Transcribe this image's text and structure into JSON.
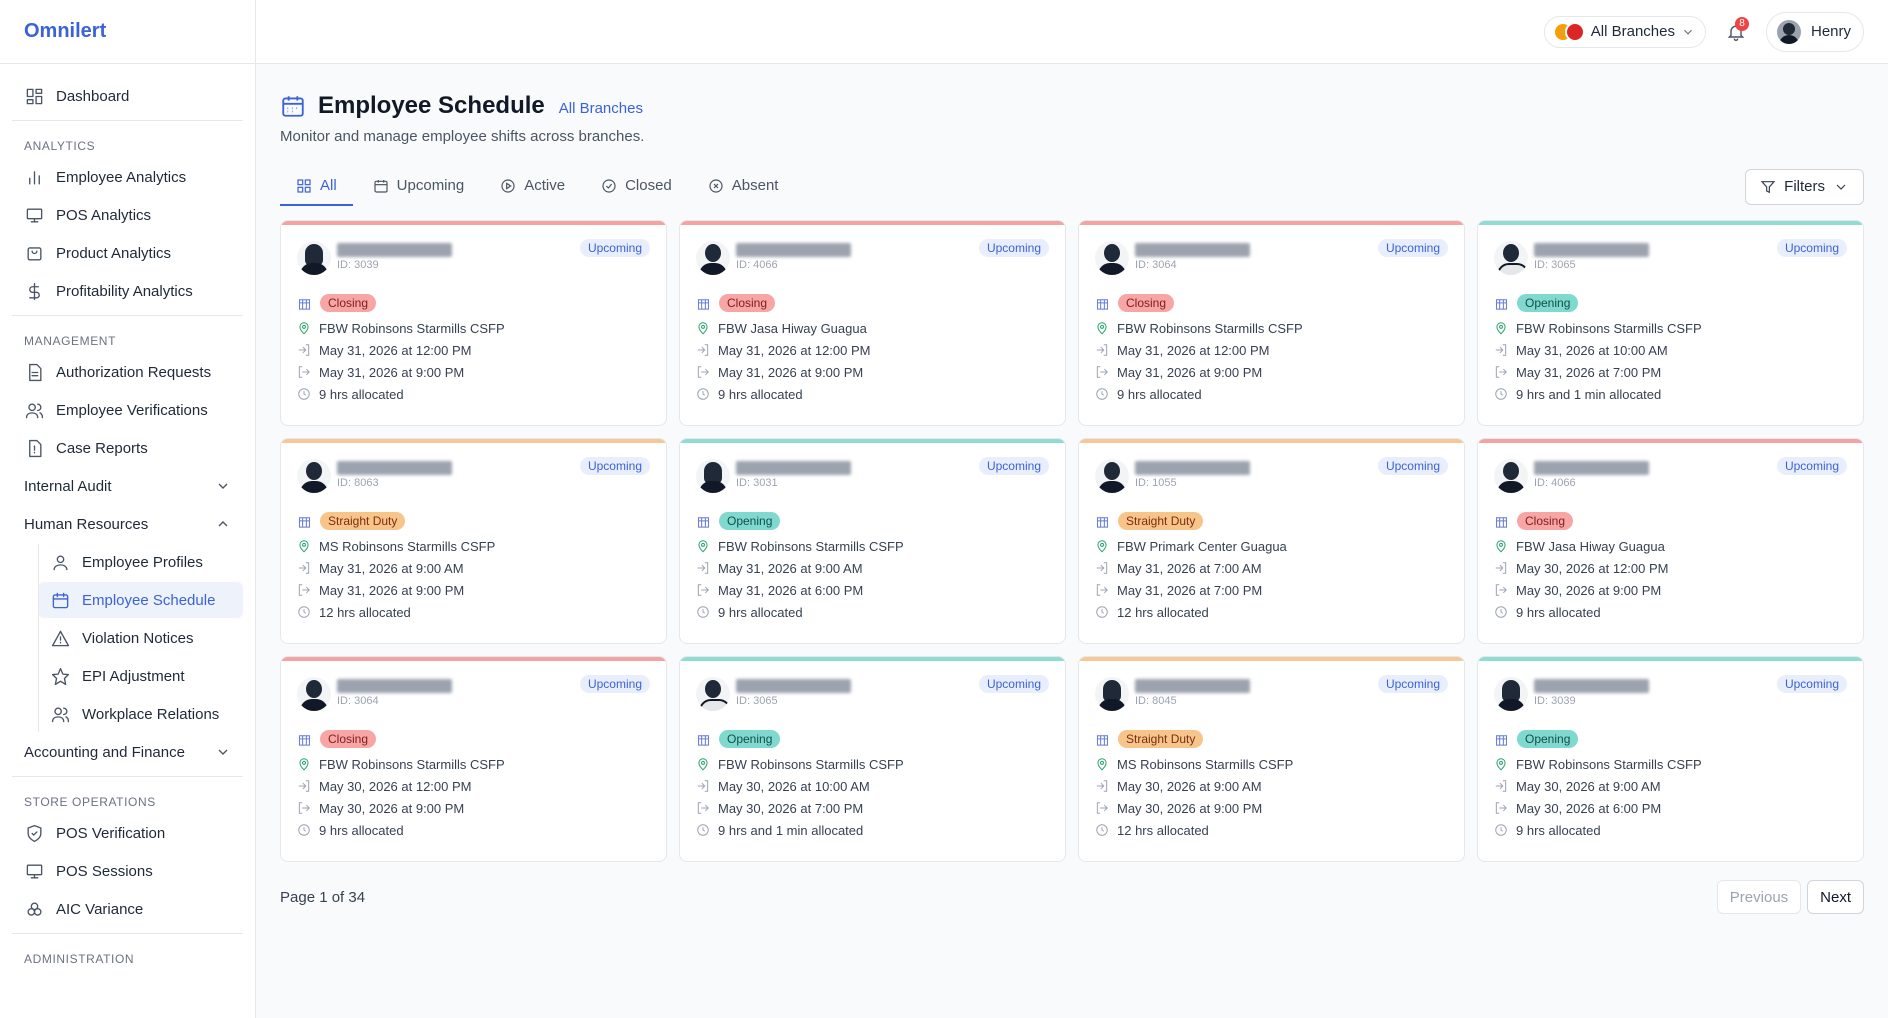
{
  "app": {
    "name": "Omnilert"
  },
  "sidebar": {
    "dashboard": "Dashboard",
    "analytics_label": "ANALYTICS",
    "analytics": [
      "Employee Analytics",
      "POS Analytics",
      "Product Analytics",
      "Profitability Analytics"
    ],
    "management_label": "MANAGEMENT",
    "management": [
      "Authorization Requests",
      "Employee Verifications",
      "Case Reports"
    ],
    "internal_audit": "Internal Audit",
    "human_resources": "Human Resources",
    "hr_items": [
      "Employee Profiles",
      "Employee Schedule",
      "Violation Notices",
      "EPI Adjustment",
      "Workplace Relations"
    ],
    "accounting": "Accounting and Finance",
    "store_ops_label": "STORE OPERATIONS",
    "store_ops": [
      "POS Verification",
      "POS Sessions",
      "AIC Variance"
    ],
    "admin_label": "ADMINISTRATION"
  },
  "topbar": {
    "branch": "All Branches",
    "notifications": "8",
    "user": "Henry"
  },
  "page": {
    "title": "Employee Schedule",
    "branch": "All Branches",
    "subtitle": "Monitor and manage employee shifts across branches.",
    "tabs": [
      "All",
      "Upcoming",
      "Active",
      "Closed",
      "Absent"
    ],
    "filters": "Filters"
  },
  "cards": [
    {
      "id": "ID: 3039",
      "status": "Upcoming",
      "shift": "Closing",
      "branch": "FBW Robinsons Starmills CSFP",
      "start": "May 31, 2026 at 12:00 PM",
      "end": "May 31, 2026 at 9:00 PM",
      "hours": "9 hrs allocated",
      "color": "#f4a3a3"
    },
    {
      "id": "ID: 4066",
      "status": "Upcoming",
      "shift": "Closing",
      "branch": "FBW Jasa Hiway Guagua",
      "start": "May 31, 2026 at 12:00 PM",
      "end": "May 31, 2026 at 9:00 PM",
      "hours": "9 hrs allocated",
      "color": "#f4a3a3"
    },
    {
      "id": "ID: 3064",
      "status": "Upcoming",
      "shift": "Closing",
      "branch": "FBW Robinsons Starmills CSFP",
      "start": "May 31, 2026 at 12:00 PM",
      "end": "May 31, 2026 at 9:00 PM",
      "hours": "9 hrs allocated",
      "color": "#f4a3a3"
    },
    {
      "id": "ID: 3065",
      "status": "Upcoming",
      "shift": "Opening",
      "branch": "FBW Robinsons Starmills CSFP",
      "start": "May 31, 2026 at 10:00 AM",
      "end": "May 31, 2026 at 7:00 PM",
      "hours": "9 hrs and 1 min allocated",
      "color": "#8fdcd3"
    },
    {
      "id": "ID: 8063",
      "status": "Upcoming",
      "shift": "Straight Duty",
      "branch": "MS Robinsons Starmills CSFP",
      "start": "May 31, 2026 at 9:00 AM",
      "end": "May 31, 2026 at 9:00 PM",
      "hours": "12 hrs allocated",
      "color": "#f7c896"
    },
    {
      "id": "ID: 3031",
      "status": "Upcoming",
      "shift": "Opening",
      "branch": "FBW Robinsons Starmills CSFP",
      "start": "May 31, 2026 at 9:00 AM",
      "end": "May 31, 2026 at 6:00 PM",
      "hours": "9 hrs allocated",
      "color": "#8fdcd3"
    },
    {
      "id": "ID: 1055",
      "status": "Upcoming",
      "shift": "Straight Duty",
      "branch": "FBW Primark Center Guagua",
      "start": "May 31, 2026 at 7:00 AM",
      "end": "May 31, 2026 at 7:00 PM",
      "hours": "12 hrs allocated",
      "color": "#f7c896"
    },
    {
      "id": "ID: 4066",
      "status": "Upcoming",
      "shift": "Closing",
      "branch": "FBW Jasa Hiway Guagua",
      "start": "May 30, 2026 at 12:00 PM",
      "end": "May 30, 2026 at 9:00 PM",
      "hours": "9 hrs allocated",
      "color": "#f4a3a3"
    },
    {
      "id": "ID: 3064",
      "status": "Upcoming",
      "shift": "Closing",
      "branch": "FBW Robinsons Starmills CSFP",
      "start": "May 30, 2026 at 12:00 PM",
      "end": "May 30, 2026 at 9:00 PM",
      "hours": "9 hrs allocated",
      "color": "#f4a3a3"
    },
    {
      "id": "ID: 3065",
      "status": "Upcoming",
      "shift": "Opening",
      "branch": "FBW Robinsons Starmills CSFP",
      "start": "May 30, 2026 at 10:00 AM",
      "end": "May 30, 2026 at 7:00 PM",
      "hours": "9 hrs and 1 min allocated",
      "color": "#8fdcd3"
    },
    {
      "id": "ID: 8045",
      "status": "Upcoming",
      "shift": "Straight Duty",
      "branch": "MS Robinsons Starmills CSFP",
      "start": "May 30, 2026 at 9:00 AM",
      "end": "May 30, 2026 at 9:00 PM",
      "hours": "12 hrs allocated",
      "color": "#f7c896"
    },
    {
      "id": "ID: 3039",
      "status": "Upcoming",
      "shift": "Opening",
      "branch": "FBW Robinsons Starmills CSFP",
      "start": "May 30, 2026 at 9:00 AM",
      "end": "May 30, 2026 at 6:00 PM",
      "hours": "9 hrs allocated",
      "color": "#8fdcd3"
    }
  ],
  "pager": {
    "text": "Page 1 of 34",
    "previous": "Previous",
    "next": "Next"
  }
}
